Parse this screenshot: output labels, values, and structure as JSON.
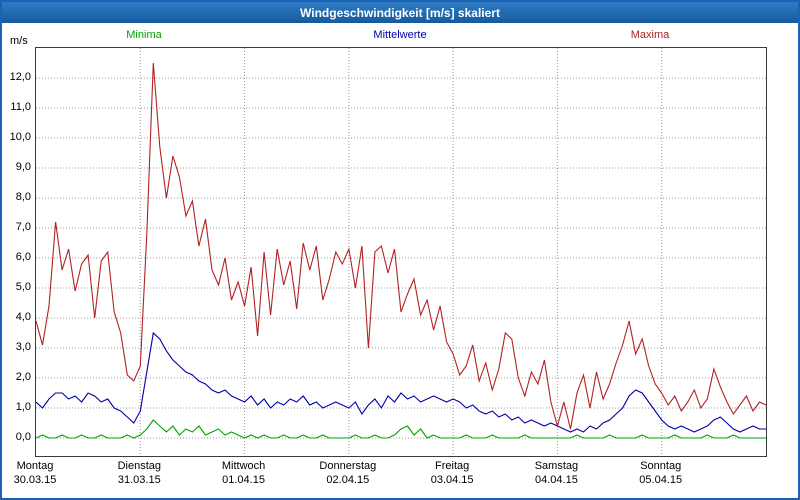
{
  "window": {
    "title": "Windgeschwindigkeit [m/s] skaliert"
  },
  "colors": {
    "frame_blue": "#1a62b5",
    "titlebar_blue": "#155a9e",
    "grid_gray": "#9b9b9b",
    "plot_border": "#3a3a3a",
    "minima_green": "#00a300",
    "mittelwerte_blue": "#0000a8",
    "maxima_red": "#b22222"
  },
  "chart_data": {
    "type": "line",
    "title": "Windgeschwindigkeit [m/s] skaliert",
    "xlabel": "",
    "ylabel": "m/s",
    "ylim": [
      -0.6,
      13.0
    ],
    "yticks": [
      0,
      1,
      2,
      3,
      4,
      5,
      6,
      7,
      8,
      9,
      10,
      11,
      12
    ],
    "ytick_labels": [
      "0,0",
      "1,0",
      "2,0",
      "3,0",
      "4,0",
      "5,0",
      "6,0",
      "7,0",
      "8,0",
      "9,0",
      "10,0",
      "11,0",
      "12,0"
    ],
    "grid": true,
    "legend_position": "top",
    "x_unit": "hours",
    "x_step_hours": 1.5,
    "x_total_hours": 168,
    "days": [
      {
        "weekday": "Montag",
        "date": "30.03.15"
      },
      {
        "weekday": "Dienstag",
        "date": "31.03.15"
      },
      {
        "weekday": "Mittwoch",
        "date": "01.04.15"
      },
      {
        "weekday": "Donnerstag",
        "date": "02.04.15"
      },
      {
        "weekday": "Freitag",
        "date": "03.04.15"
      },
      {
        "weekday": "Samstag",
        "date": "04.04.15"
      },
      {
        "weekday": "Sonntag",
        "date": "05.04.15"
      }
    ],
    "series": [
      {
        "name": "Minima",
        "color": "#00a300",
        "values": [
          0.0,
          0.1,
          0.0,
          0.0,
          0.1,
          0.0,
          0.0,
          0.1,
          0.0,
          0.0,
          0.1,
          0.0,
          0.0,
          0.0,
          0.1,
          0.0,
          0.1,
          0.3,
          0.6,
          0.4,
          0.2,
          0.4,
          0.1,
          0.3,
          0.2,
          0.4,
          0.1,
          0.2,
          0.3,
          0.1,
          0.2,
          0.1,
          0.0,
          0.1,
          0.0,
          0.1,
          0.0,
          0.0,
          0.1,
          0.0,
          0.0,
          0.1,
          0.0,
          0.0,
          0.1,
          0.0,
          0.0,
          0.0,
          0.0,
          0.1,
          0.0,
          0.0,
          0.1,
          0.0,
          0.0,
          0.1,
          0.3,
          0.4,
          0.1,
          0.3,
          0.0,
          0.1,
          0.0,
          0.0,
          0.0,
          0.0,
          0.1,
          0.0,
          0.0,
          0.0,
          0.1,
          0.0,
          0.0,
          0.0,
          0.0,
          0.1,
          0.0,
          0.0,
          0.0,
          0.0,
          0.0,
          0.0,
          0.0,
          0.1,
          0.0,
          0.0,
          0.0,
          0.0,
          0.1,
          0.0,
          0.0,
          0.0,
          0.0,
          0.1,
          0.0,
          0.0,
          0.0,
          0.0,
          0.1,
          0.0,
          0.0,
          0.0,
          0.0,
          0.1,
          0.0,
          0.0,
          0.0,
          0.1,
          0.0,
          0.0,
          0.0,
          0.0,
          0.0
        ]
      },
      {
        "name": "Mittelwerte",
        "color": "#0000a8",
        "values": [
          1.2,
          1.0,
          1.3,
          1.5,
          1.5,
          1.3,
          1.4,
          1.2,
          1.5,
          1.4,
          1.2,
          1.3,
          1.0,
          0.9,
          0.7,
          0.5,
          0.9,
          2.2,
          3.5,
          3.3,
          2.9,
          2.6,
          2.4,
          2.2,
          2.1,
          1.9,
          1.8,
          1.6,
          1.5,
          1.6,
          1.4,
          1.3,
          1.2,
          1.4,
          1.1,
          1.3,
          1.0,
          1.2,
          1.1,
          1.3,
          1.2,
          1.4,
          1.1,
          1.2,
          1.0,
          1.1,
          1.2,
          1.1,
          1.0,
          1.2,
          0.8,
          1.1,
          1.3,
          1.0,
          1.4,
          1.2,
          1.5,
          1.3,
          1.4,
          1.2,
          1.3,
          1.4,
          1.3,
          1.2,
          1.3,
          1.2,
          1.0,
          1.1,
          0.9,
          0.8,
          0.9,
          0.7,
          0.8,
          0.6,
          0.7,
          0.5,
          0.6,
          0.5,
          0.4,
          0.5,
          0.4,
          0.3,
          0.2,
          0.3,
          0.2,
          0.4,
          0.3,
          0.5,
          0.6,
          0.8,
          1.0,
          1.4,
          1.6,
          1.5,
          1.2,
          0.9,
          0.6,
          0.4,
          0.3,
          0.4,
          0.3,
          0.2,
          0.3,
          0.4,
          0.6,
          0.7,
          0.5,
          0.3,
          0.2,
          0.3,
          0.4,
          0.3,
          0.3
        ]
      },
      {
        "name": "Maxima",
        "color": "#b22222",
        "values": [
          3.9,
          3.1,
          4.4,
          7.2,
          5.6,
          6.3,
          4.9,
          5.8,
          6.1,
          4.0,
          5.9,
          6.2,
          4.2,
          3.5,
          2.1,
          1.9,
          2.4,
          6.8,
          12.5,
          9.7,
          8.0,
          9.4,
          8.7,
          7.4,
          7.9,
          6.4,
          7.3,
          5.6,
          5.1,
          6.0,
          4.6,
          5.2,
          4.4,
          5.7,
          3.4,
          6.2,
          4.1,
          6.3,
          5.1,
          5.9,
          4.3,
          6.5,
          5.6,
          6.4,
          4.6,
          5.3,
          6.2,
          5.8,
          6.3,
          5.0,
          6.4,
          3.0,
          6.2,
          6.4,
          5.5,
          6.3,
          4.2,
          4.8,
          5.3,
          4.1,
          4.6,
          3.6,
          4.4,
          3.2,
          2.8,
          2.1,
          2.4,
          3.1,
          1.9,
          2.5,
          1.6,
          2.3,
          3.5,
          3.3,
          2.0,
          1.4,
          2.2,
          1.8,
          2.6,
          1.2,
          0.4,
          1.2,
          0.3,
          1.5,
          2.1,
          1.0,
          2.2,
          1.3,
          1.8,
          2.5,
          3.1,
          3.9,
          2.8,
          3.3,
          2.4,
          1.8,
          1.5,
          1.1,
          1.4,
          0.9,
          1.2,
          1.6,
          1.0,
          1.3,
          2.3,
          1.7,
          1.2,
          0.8,
          1.1,
          1.4,
          0.9,
          1.2,
          1.1
        ]
      }
    ]
  }
}
